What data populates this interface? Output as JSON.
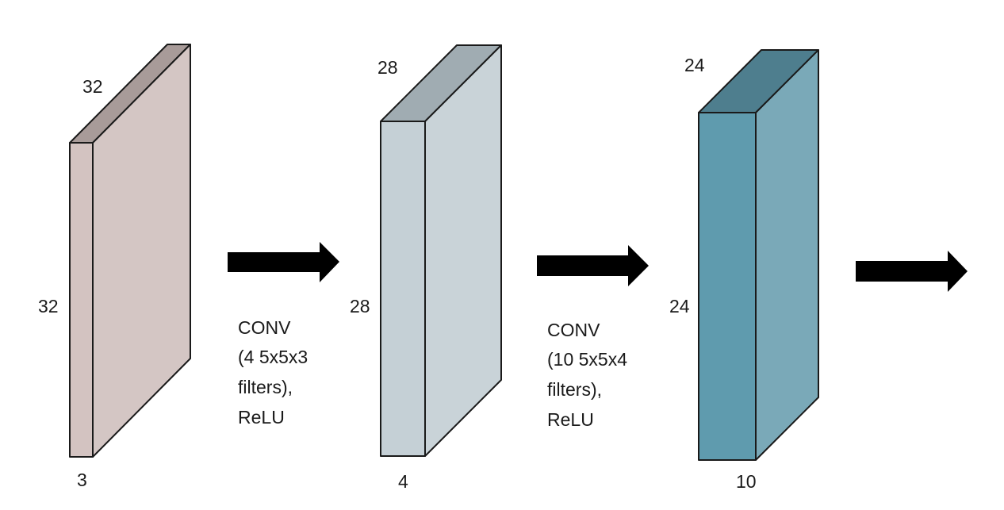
{
  "volumes": [
    {
      "height_label": "32",
      "width_label": "32",
      "depth_label": "3",
      "colors": {
        "front": "#d3c3c1",
        "side": "#d4c6c4",
        "top": "#a89b99"
      }
    },
    {
      "height_label": "28",
      "width_label": "28",
      "depth_label": "4",
      "colors": {
        "front": "#c5d0d6",
        "side": "#c9d3d8",
        "top": "#a0acb2"
      }
    },
    {
      "height_label": "24",
      "width_label": "24",
      "depth_label": "10",
      "colors": {
        "front": "#5f9bae",
        "side": "#7aa9b8",
        "top": "#4e7e8e"
      }
    }
  ],
  "operations": [
    {
      "lines": [
        "CONV",
        "(4 5x5x3",
        "filters),",
        "ReLU"
      ]
    },
    {
      "lines": [
        "CONV",
        "(10 5x5x4",
        "filters),",
        "ReLU"
      ]
    }
  ],
  "arrow_color": "#000000",
  "edge_color": "#1a1a1a"
}
